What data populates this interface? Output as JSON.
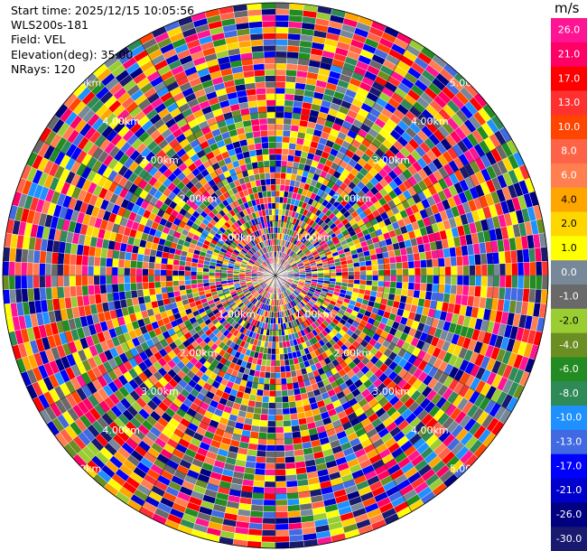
{
  "info": {
    "start_time": "Start time: 2025/12/15 10:05:56",
    "instrument": "WLS200s-181",
    "field": "Field: VEL",
    "elevation": "Elevation(deg): 35.00",
    "nrays": "NRays: 120"
  },
  "colorbar": {
    "unit": "m/s",
    "labels": [
      "26.0",
      "21.0",
      "17.0",
      "13.0",
      "10.0",
      "8.0",
      "6.0",
      "4.0",
      "2.0",
      "1.0",
      "0.0",
      "-1.0",
      "-2.0",
      "-4.0",
      "-6.0",
      "-8.0",
      "-10.0",
      "-13.0",
      "-17.0",
      "-21.0",
      "-26.0",
      "-30.0"
    ],
    "colors": [
      "#ff1493",
      "#ff0066",
      "#ff0000",
      "#ff3030",
      "#ff4500",
      "#ff6347",
      "#ff7f50",
      "#ffa500",
      "#ffd700",
      "#ffff00",
      "#778899",
      "#696969",
      "#9acd32",
      "#6b8e23",
      "#228b22",
      "#2e8b57",
      "#1e90ff",
      "#4169e1",
      "#0000ff",
      "#0000cd",
      "#000080",
      "#191970"
    ]
  },
  "range_rings": {
    "labels": [
      "1.00km",
      "2.00km",
      "3.00km",
      "4.00km",
      "5.00km"
    ],
    "km": [
      1,
      2,
      3,
      4,
      5
    ]
  },
  "ppi": {
    "rays": 120,
    "max_range_km": 5,
    "gates": 45,
    "field": "VEL"
  }
}
